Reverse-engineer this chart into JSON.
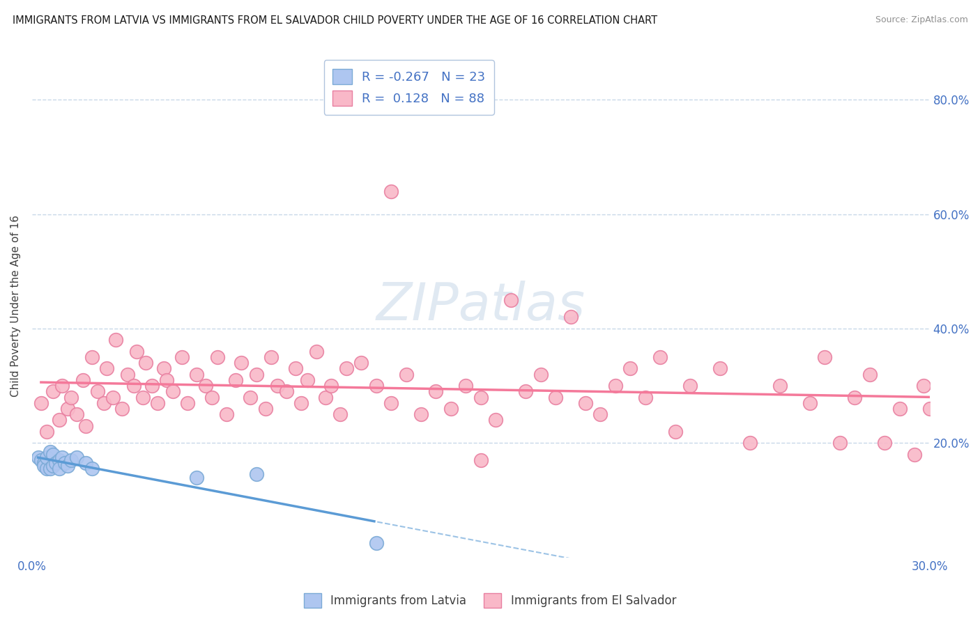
{
  "title": "IMMIGRANTS FROM LATVIA VS IMMIGRANTS FROM EL SALVADOR CHILD POVERTY UNDER THE AGE OF 16 CORRELATION CHART",
  "source": "Source: ZipAtlas.com",
  "ylabel": "Child Poverty Under the Age of 16",
  "xlim": [
    0.0,
    0.3
  ],
  "ylim": [
    0.0,
    0.88
  ],
  "yticks": [
    0.0,
    0.2,
    0.4,
    0.6,
    0.8
  ],
  "ytick_labels": [
    "",
    "20.0%",
    "40.0%",
    "60.0%",
    "80.0%"
  ],
  "xticks": [
    0.0,
    0.05,
    0.1,
    0.15,
    0.2,
    0.25,
    0.3
  ],
  "xtick_labels": [
    "0.0%",
    "",
    "",
    "",
    "",
    "",
    "30.0%"
  ],
  "latvia_color": "#aec6f0",
  "latvia_edge_color": "#7baad6",
  "el_salvador_color": "#f9b8c8",
  "el_salvador_edge_color": "#e87fa0",
  "latvia_R": -0.267,
  "latvia_N": 23,
  "el_salvador_R": 0.128,
  "el_salvador_N": 88,
  "latvia_line_color": "#5b9bd5",
  "el_salvador_line_color": "#f4799a",
  "background_color": "#ffffff",
  "grid_color": "#c8d8e8",
  "latvia_x": [
    0.002,
    0.003,
    0.004,
    0.004,
    0.005,
    0.005,
    0.006,
    0.006,
    0.007,
    0.007,
    0.008,
    0.009,
    0.009,
    0.01,
    0.011,
    0.012,
    0.013,
    0.015,
    0.018,
    0.02,
    0.055,
    0.075,
    0.115
  ],
  "latvia_y": [
    0.175,
    0.17,
    0.165,
    0.16,
    0.155,
    0.175,
    0.155,
    0.185,
    0.16,
    0.18,
    0.165,
    0.17,
    0.155,
    0.175,
    0.165,
    0.16,
    0.17,
    0.175,
    0.165,
    0.155,
    0.14,
    0.145,
    0.025
  ],
  "el_salvador_x": [
    0.003,
    0.005,
    0.007,
    0.009,
    0.01,
    0.012,
    0.013,
    0.015,
    0.017,
    0.018,
    0.02,
    0.022,
    0.024,
    0.025,
    0.027,
    0.028,
    0.03,
    0.032,
    0.034,
    0.035,
    0.037,
    0.038,
    0.04,
    0.042,
    0.044,
    0.045,
    0.047,
    0.05,
    0.052,
    0.055,
    0.058,
    0.06,
    0.062,
    0.065,
    0.068,
    0.07,
    0.073,
    0.075,
    0.078,
    0.08,
    0.082,
    0.085,
    0.088,
    0.09,
    0.092,
    0.095,
    0.098,
    0.1,
    0.103,
    0.105,
    0.11,
    0.115,
    0.12,
    0.125,
    0.13,
    0.135,
    0.14,
    0.145,
    0.15,
    0.155,
    0.16,
    0.165,
    0.17,
    0.175,
    0.18,
    0.185,
    0.19,
    0.195,
    0.2,
    0.205,
    0.21,
    0.215,
    0.22,
    0.23,
    0.24,
    0.25,
    0.26,
    0.265,
    0.27,
    0.275,
    0.28,
    0.285,
    0.29,
    0.295,
    0.298,
    0.3,
    0.12,
    0.15
  ],
  "el_salvador_y": [
    0.27,
    0.22,
    0.29,
    0.24,
    0.3,
    0.26,
    0.28,
    0.25,
    0.31,
    0.23,
    0.35,
    0.29,
    0.27,
    0.33,
    0.28,
    0.38,
    0.26,
    0.32,
    0.3,
    0.36,
    0.28,
    0.34,
    0.3,
    0.27,
    0.33,
    0.31,
    0.29,
    0.35,
    0.27,
    0.32,
    0.3,
    0.28,
    0.35,
    0.25,
    0.31,
    0.34,
    0.28,
    0.32,
    0.26,
    0.35,
    0.3,
    0.29,
    0.33,
    0.27,
    0.31,
    0.36,
    0.28,
    0.3,
    0.25,
    0.33,
    0.34,
    0.3,
    0.27,
    0.32,
    0.25,
    0.29,
    0.26,
    0.3,
    0.28,
    0.24,
    0.45,
    0.29,
    0.32,
    0.28,
    0.42,
    0.27,
    0.25,
    0.3,
    0.33,
    0.28,
    0.35,
    0.22,
    0.3,
    0.33,
    0.2,
    0.3,
    0.27,
    0.35,
    0.2,
    0.28,
    0.32,
    0.2,
    0.26,
    0.18,
    0.3,
    0.26,
    0.64,
    0.17
  ]
}
